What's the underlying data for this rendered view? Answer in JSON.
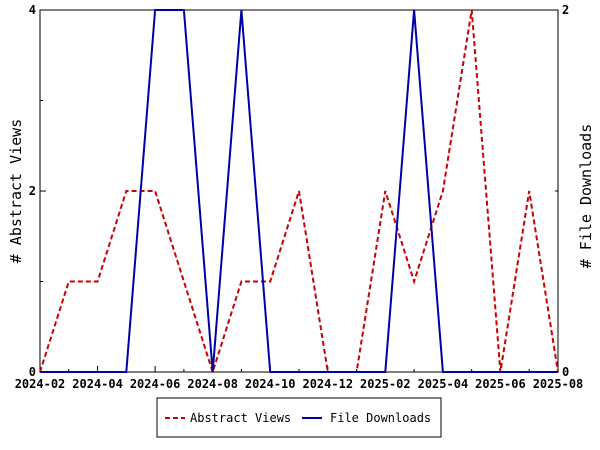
{
  "chart_data": {
    "type": "line",
    "x": [
      "2024-02",
      "2024-03",
      "2024-04",
      "2024-05",
      "2024-06",
      "2024-07",
      "2024-08",
      "2024-09",
      "2024-10",
      "2024-11",
      "2024-12",
      "2025-01",
      "2025-02",
      "2025-03",
      "2025-04",
      "2025-05",
      "2025-06",
      "2025-07",
      "2025-08"
    ],
    "x_tick_labels": [
      "2024-02",
      "2024-04",
      "2024-06",
      "2024-08",
      "2024-10",
      "2024-12",
      "2025-02",
      "2025-04",
      "2025-06",
      "2025-08"
    ],
    "ylabel_left": "# Abstract Views",
    "ylabel_right": "# File Downloads",
    "ylim_left": [
      0,
      4
    ],
    "ylim_right": [
      0,
      2
    ],
    "yticks_left": [
      "0",
      "2",
      "4"
    ],
    "yticks_right": [
      "0",
      "2"
    ],
    "series": [
      {
        "name": "Abstract Views",
        "axis": "left",
        "color": "#cc0000",
        "dash": true,
        "values": [
          0,
          1,
          1,
          2,
          2,
          1,
          0,
          1,
          1,
          2,
          0,
          0,
          2,
          1,
          2,
          4,
          0,
          2,
          0
        ]
      },
      {
        "name": "File Downloads",
        "axis": "right",
        "color": "#0000aa",
        "dash": false,
        "values": [
          0,
          0,
          0,
          0,
          2,
          2,
          0,
          2,
          0,
          0,
          0,
          0,
          0,
          2,
          0,
          0,
          0,
          0,
          0
        ]
      }
    ],
    "legend_position": "bottom"
  }
}
